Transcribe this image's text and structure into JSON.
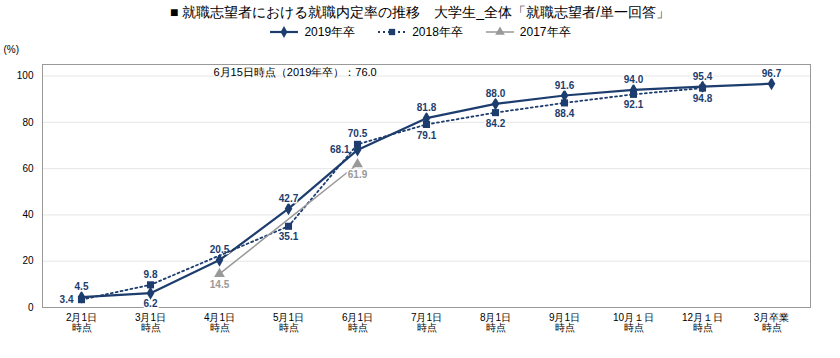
{
  "chart_data": {
    "type": "line",
    "title": "■ 就職志望者における就職内定率の推移　大学生_全体「就職志望者/単一回答」",
    "ylabel": "(%)",
    "categories": [
      "2月1日\n時点",
      "3月1日\n時点",
      "4月1日\n時点",
      "5月1日\n時点",
      "6月1日\n時点",
      "7月1日\n時点",
      "8月1日\n時点",
      "9月1日\n時点",
      "10月１日\n時点",
      "12月１日\n時点",
      "3月卒業\n時点"
    ],
    "series": [
      {
        "name": "2019年卒",
        "color": "#1c3d6e",
        "marker": "diamond",
        "line_style": "solid",
        "values": [
          4.5,
          6.2,
          20.5,
          42.7,
          68.1,
          81.8,
          88.0,
          91.6,
          94.0,
          95.4,
          96.7
        ],
        "value_labels": [
          "4.5",
          "6.2",
          "20.5",
          "42.7",
          "68.1",
          "81.8",
          "88.0",
          "91.6",
          "94.0",
          "95.4",
          "96.7"
        ]
      },
      {
        "name": "2018年卒",
        "color": "#1c3d6e",
        "marker": "square",
        "line_style": "dotted",
        "values": [
          3.4,
          9.8,
          null,
          35.1,
          70.5,
          79.1,
          84.2,
          88.4,
          92.1,
          94.8,
          null
        ],
        "value_labels": [
          "3.4",
          "9.8",
          null,
          "35.1",
          "70.5",
          "79.1",
          "84.2",
          "88.4",
          "92.1",
          "94.8",
          null
        ]
      },
      {
        "name": "2017年卒",
        "color": "#999999",
        "marker": "triangle",
        "line_style": "solid",
        "values": [
          null,
          null,
          14.5,
          null,
          61.9,
          null,
          null,
          null,
          null,
          null,
          null
        ],
        "value_labels": [
          null,
          null,
          "14.5",
          null,
          "61.9",
          null,
          null,
          null,
          null,
          null,
          null
        ]
      }
    ],
    "annotation": "6月15日時点（2019年卒）：76.0",
    "ylim": [
      0,
      105
    ],
    "yticks": [
      0,
      20,
      40,
      60,
      80,
      100
    ],
    "grid": true,
    "legend": "top",
    "data_labels": true
  }
}
